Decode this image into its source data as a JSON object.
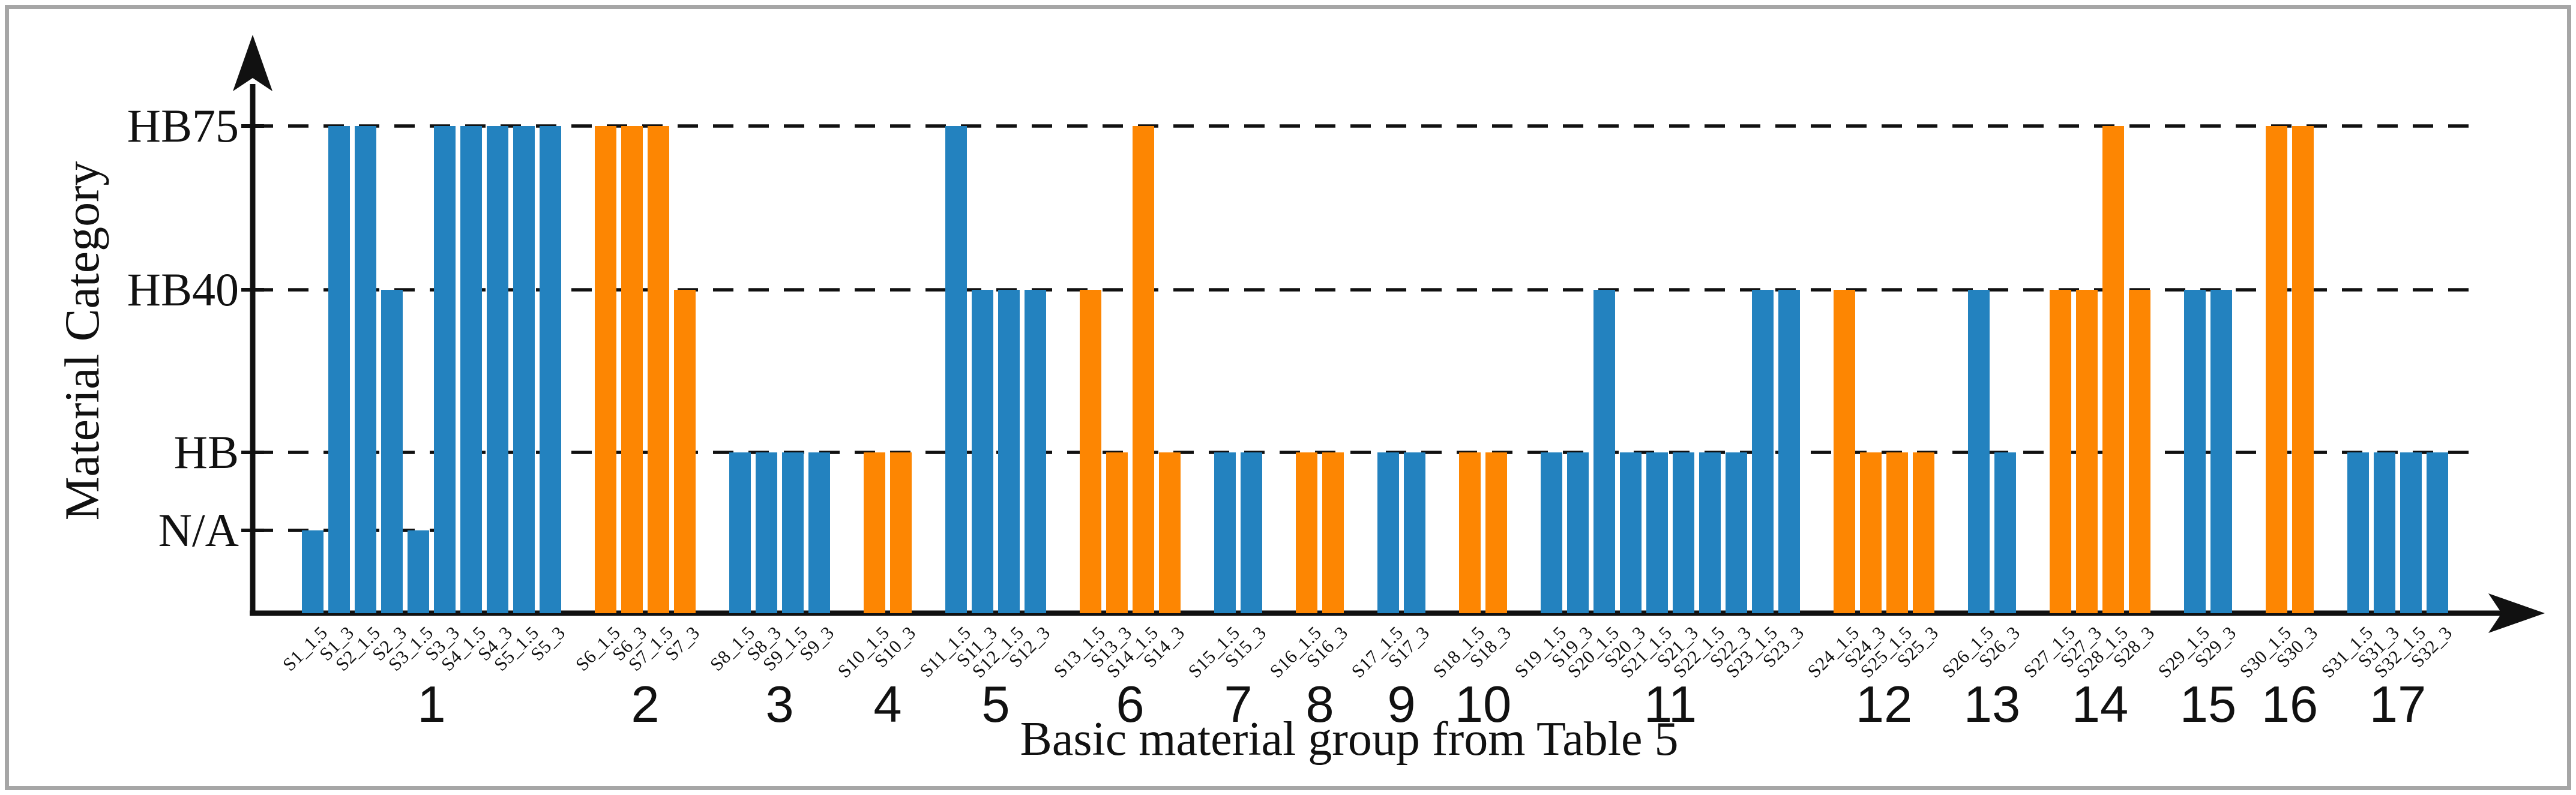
{
  "figure": {
    "background": "#ffffff",
    "border_color": "#a6a6a6"
  },
  "chart_data": {
    "type": "bar",
    "title": "",
    "xlabel": "Basic material group from Table 5",
    "ylabel": "Material Category",
    "y_categories": [
      "N/A",
      "HB",
      "HB40",
      "HB75"
    ],
    "grid": "dashed horizontal lines at HB, HB40, HB75 (short dashed line at N/A near first bars)",
    "legend_position": "none",
    "colors": {
      "blue": "#2382BF",
      "orange": "#FD8602",
      "axis": "#111111"
    },
    "groups": [
      {
        "id": "1",
        "color": "blue",
        "bars": [
          {
            "label": "S1_1.5",
            "value": "N/A"
          },
          {
            "label": "S1_3",
            "value": "HB75"
          },
          {
            "label": "S2_1.5",
            "value": "HB75"
          },
          {
            "label": "S2_3",
            "value": "HB40"
          },
          {
            "label": "S3_1.5",
            "value": "N/A"
          },
          {
            "label": "S3_3",
            "value": "HB75"
          },
          {
            "label": "S4_1.5",
            "value": "HB75"
          },
          {
            "label": "S4_3",
            "value": "HB75"
          },
          {
            "label": "S5_1.5",
            "value": "HB75"
          },
          {
            "label": "S5_3",
            "value": "HB75"
          }
        ]
      },
      {
        "id": "2",
        "color": "orange",
        "bars": [
          {
            "label": "S6_1.5",
            "value": "HB75"
          },
          {
            "label": "S6_3",
            "value": "HB75"
          },
          {
            "label": "S7_1.5",
            "value": "HB75"
          },
          {
            "label": "S7_3",
            "value": "HB40"
          }
        ]
      },
      {
        "id": "3",
        "color": "blue",
        "bars": [
          {
            "label": "S8_1.5",
            "value": "HB"
          },
          {
            "label": "S8_3",
            "value": "HB"
          },
          {
            "label": "S9_1.5",
            "value": "HB"
          },
          {
            "label": "S9_3",
            "value": "HB"
          }
        ]
      },
      {
        "id": "4",
        "color": "orange",
        "bars": [
          {
            "label": "S10_1.5",
            "value": "HB"
          },
          {
            "label": "S10_3",
            "value": "HB"
          }
        ]
      },
      {
        "id": "5",
        "color": "blue",
        "bars": [
          {
            "label": "S11_1.5",
            "value": "HB75"
          },
          {
            "label": "S11_3",
            "value": "HB40"
          },
          {
            "label": "S12_1.5",
            "value": "HB40"
          },
          {
            "label": "S12_3",
            "value": "HB40"
          }
        ]
      },
      {
        "id": "6",
        "color": "orange",
        "bars": [
          {
            "label": "S13_1.5",
            "value": "HB40"
          },
          {
            "label": "S13_3",
            "value": "HB"
          },
          {
            "label": "S14_1.5",
            "value": "HB75"
          },
          {
            "label": "S14_3",
            "value": "HB"
          }
        ]
      },
      {
        "id": "7",
        "color": "blue",
        "bars": [
          {
            "label": "S15_1.5",
            "value": "HB"
          },
          {
            "label": "S15_3",
            "value": "HB"
          }
        ]
      },
      {
        "id": "8",
        "color": "orange",
        "bars": [
          {
            "label": "S16_1.5",
            "value": "HB"
          },
          {
            "label": "S16_3",
            "value": "HB"
          }
        ]
      },
      {
        "id": "9",
        "color": "blue",
        "bars": [
          {
            "label": "S17_1.5",
            "value": "HB"
          },
          {
            "label": "S17_3",
            "value": "HB"
          }
        ]
      },
      {
        "id": "10",
        "color": "orange",
        "bars": [
          {
            "label": "S18_1.5",
            "value": "HB"
          },
          {
            "label": "S18_3",
            "value": "HB"
          }
        ]
      },
      {
        "id": "11",
        "color": "blue",
        "bars": [
          {
            "label": "S19_1.5",
            "value": "HB"
          },
          {
            "label": "S19_3",
            "value": "HB"
          },
          {
            "label": "S20_1.5",
            "value": "HB40"
          },
          {
            "label": "S20_3",
            "value": "HB"
          },
          {
            "label": "S21_1.5",
            "value": "HB"
          },
          {
            "label": "S21_3",
            "value": "HB"
          },
          {
            "label": "S22_1.5",
            "value": "HB"
          },
          {
            "label": "S22_3",
            "value": "HB"
          },
          {
            "label": "S23_1.5",
            "value": "HB40"
          },
          {
            "label": "S23_3",
            "value": "HB40"
          }
        ]
      },
      {
        "id": "12",
        "color": "orange",
        "bars": [
          {
            "label": "S24_1.5",
            "value": "HB40"
          },
          {
            "label": "S24_3",
            "value": "HB"
          },
          {
            "label": "S25_1.5",
            "value": "HB"
          },
          {
            "label": "S25_3",
            "value": "HB"
          }
        ]
      },
      {
        "id": "13",
        "color": "blue",
        "bars": [
          {
            "label": "S26_1.5",
            "value": "HB40"
          },
          {
            "label": "S26_3",
            "value": "HB"
          }
        ]
      },
      {
        "id": "14",
        "color": "orange",
        "bars": [
          {
            "label": "S27_1.5",
            "value": "HB40"
          },
          {
            "label": "S27_3",
            "value": "HB40"
          },
          {
            "label": "S28_1.5",
            "value": "HB75"
          },
          {
            "label": "S28_3",
            "value": "HB40"
          }
        ]
      },
      {
        "id": "15",
        "color": "blue",
        "bars": [
          {
            "label": "S29_1.5",
            "value": "HB40"
          },
          {
            "label": "S29_3",
            "value": "HB40"
          }
        ]
      },
      {
        "id": "16",
        "color": "orange",
        "bars": [
          {
            "label": "S30_1.5",
            "value": "HB75"
          },
          {
            "label": "S30_3",
            "value": "HB75"
          }
        ]
      },
      {
        "id": "17",
        "color": "blue",
        "bars": [
          {
            "label": "S31_1.5",
            "value": "HB"
          },
          {
            "label": "S31_3",
            "value": "HB"
          },
          {
            "label": "S32_1.5",
            "value": "HB"
          },
          {
            "label": "S32_3",
            "value": "HB"
          }
        ]
      }
    ]
  }
}
